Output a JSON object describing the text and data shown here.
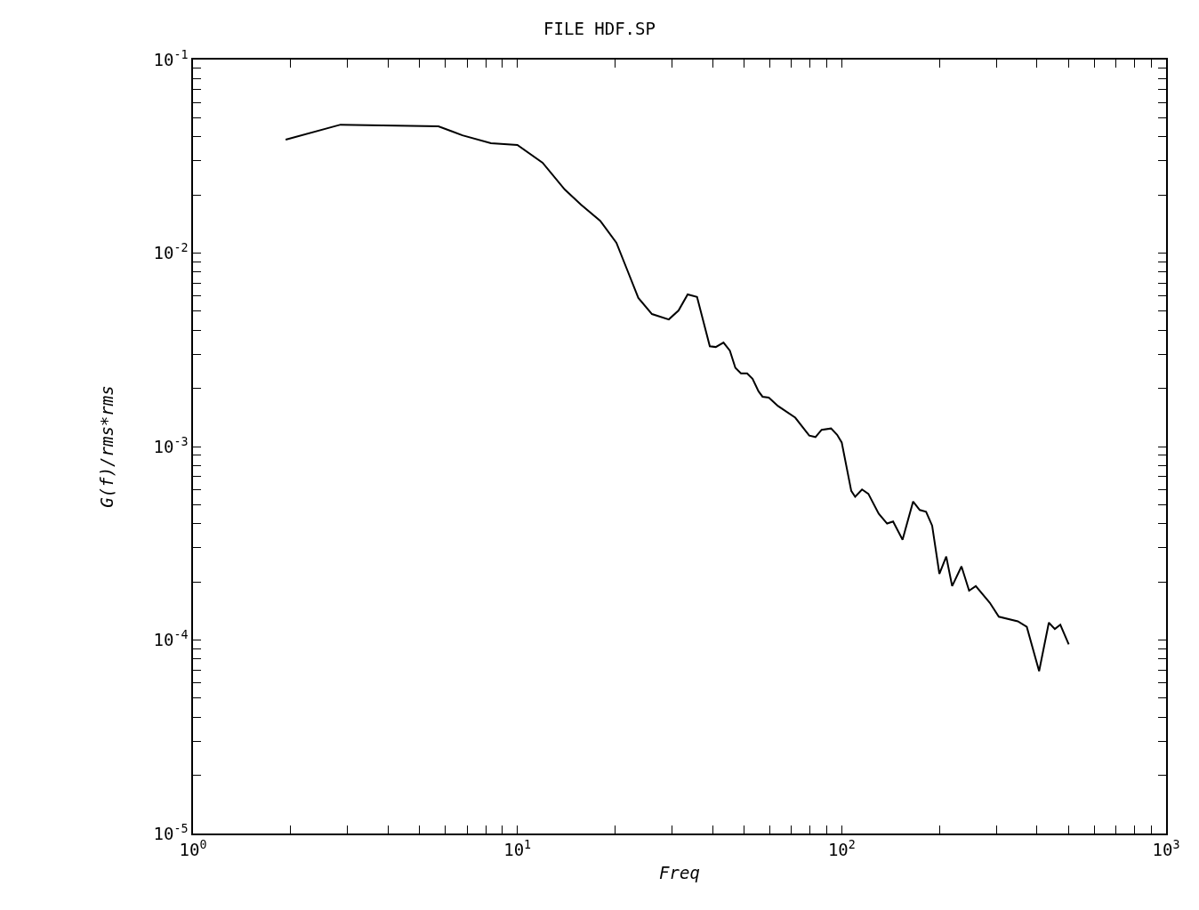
{
  "chart_data": {
    "type": "line",
    "title": "FILE HDF.SP",
    "xlabel": "Freq",
    "ylabel": "G(f)/rms*rms",
    "log": "xy",
    "grid": false,
    "marker": "none",
    "line_style": "solid",
    "xlim": [
      1,
      1000
    ],
    "ylim": [
      1e-05,
      0.1
    ],
    "xticks": [
      {
        "value": 1,
        "label": "10$^{0}$"
      },
      {
        "value": 2,
        "label": null
      },
      {
        "value": 3,
        "label": null
      },
      {
        "value": 4,
        "label": null
      },
      {
        "value": 5,
        "label": null
      },
      {
        "value": 6,
        "label": null
      },
      {
        "value": 7,
        "label": null
      },
      {
        "value": 8,
        "label": null
      },
      {
        "value": 9,
        "label": null
      },
      {
        "value": 10,
        "label": "10$^{1}$"
      },
      {
        "value": 20,
        "label": null
      },
      {
        "value": 30,
        "label": null
      },
      {
        "value": 40,
        "label": null
      },
      {
        "value": 50,
        "label": null
      },
      {
        "value": 60,
        "label": null
      },
      {
        "value": 70,
        "label": null
      },
      {
        "value": 80,
        "label": null
      },
      {
        "value": 90,
        "label": null
      },
      {
        "value": 100,
        "label": "10$^{2}$"
      },
      {
        "value": 200,
        "label": null
      },
      {
        "value": 300,
        "label": null
      },
      {
        "value": 400,
        "label": null
      },
      {
        "value": 500,
        "label": null
      },
      {
        "value": 600,
        "label": null
      },
      {
        "value": 700,
        "label": null
      },
      {
        "value": 800,
        "label": null
      },
      {
        "value": 900,
        "label": null
      },
      {
        "value": 1000,
        "label": "10$^{3}$"
      }
    ],
    "yticks": [
      {
        "value": 1e-05,
        "label": "10$^{-5}$"
      },
      {
        "value": 2e-05,
        "label": null
      },
      {
        "value": 3e-05,
        "label": null
      },
      {
        "value": 4e-05,
        "label": null
      },
      {
        "value": 5e-05,
        "label": null
      },
      {
        "value": 6e-05,
        "label": null
      },
      {
        "value": 7e-05,
        "label": null
      },
      {
        "value": 8e-05,
        "label": null
      },
      {
        "value": 9e-05,
        "label": null
      },
      {
        "value": 0.0001,
        "label": "10$^{-4}$"
      },
      {
        "value": 0.0002,
        "label": null
      },
      {
        "value": 0.0003,
        "label": null
      },
      {
        "value": 0.0004,
        "label": null
      },
      {
        "value": 0.0005,
        "label": null
      },
      {
        "value": 0.0006,
        "label": null
      },
      {
        "value": 0.0007,
        "label": null
      },
      {
        "value": 0.0008,
        "label": null
      },
      {
        "value": 0.0009,
        "label": null
      },
      {
        "value": 0.001,
        "label": "10$^{-3}$"
      },
      {
        "value": 0.002,
        "label": null
      },
      {
        "value": 0.003,
        "label": null
      },
      {
        "value": 0.004,
        "label": null
      },
      {
        "value": 0.005,
        "label": null
      },
      {
        "value": 0.006,
        "label": null
      },
      {
        "value": 0.007,
        "label": null
      },
      {
        "value": 0.008,
        "label": null
      },
      {
        "value": 0.009,
        "label": null
      },
      {
        "value": 0.01,
        "label": "10$^{-2}$"
      },
      {
        "value": 0.02,
        "label": null
      },
      {
        "value": 0.03,
        "label": null
      },
      {
        "value": 0.04,
        "label": null
      },
      {
        "value": 0.05,
        "label": null
      },
      {
        "value": 0.06,
        "label": null
      },
      {
        "value": 0.07,
        "label": null
      },
      {
        "value": 0.08,
        "label": null
      },
      {
        "value": 0.09,
        "label": null
      },
      {
        "value": 0.1,
        "label": "10$^{-1}$"
      }
    ],
    "series": [
      {
        "color": "#000000",
        "x": [
          1.93,
          2.85,
          5.71,
          6.77,
          8.29,
          10.0,
          11.96,
          14.0,
          15.7,
          18.0,
          20.2,
          21.8,
          23.6,
          26.0,
          29.3,
          31.4,
          33.5,
          35.8,
          39.2,
          40.9,
          43.2,
          45.2,
          47.0,
          48.9,
          51.1,
          53.1,
          55.4,
          57.0,
          59.6,
          63.6,
          71.9,
          79.4,
          83.0,
          86.7,
          92.7,
          96.8,
          100,
          107,
          110,
          115.5,
          120.8,
          130,
          138,
          144,
          154,
          166,
          174,
          182,
          190,
          200,
          210,
          219,
          234,
          247,
          259,
          286,
          305,
          349,
          372,
          406,
          435,
          454,
          472,
          501
        ],
        "values": [
          0.0386,
          0.0461,
          0.0452,
          0.0406,
          0.037,
          0.0362,
          0.0293,
          0.0213,
          0.0178,
          0.0147,
          0.0113,
          0.0082,
          0.00586,
          0.00484,
          0.00454,
          0.00505,
          0.00611,
          0.00593,
          0.0033,
          0.00327,
          0.00345,
          0.00313,
          0.00255,
          0.00239,
          0.00239,
          0.00224,
          0.00193,
          0.00181,
          0.00179,
          0.00162,
          0.00141,
          0.00114,
          0.00112,
          0.00122,
          0.00124,
          0.00115,
          0.00105,
          0.00059,
          0.00055,
          0.0006,
          0.00057,
          0.00045,
          0.0004,
          0.00041,
          0.00033,
          0.00052,
          0.00047,
          0.00046,
          0.00039,
          0.00022,
          0.00027,
          0.00019,
          0.00024,
          0.00018,
          0.00019,
          0.000156,
          0.000132,
          0.000125,
          0.000117,
          6.9e-05,
          0.000123,
          0.000114,
          0.00012,
          9.5e-05
        ]
      }
    ]
  }
}
